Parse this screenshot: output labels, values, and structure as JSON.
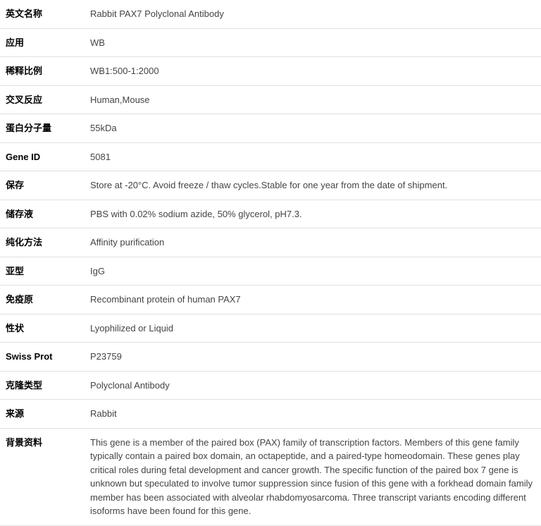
{
  "rows": [
    {
      "label": "英文名称",
      "value": "Rabbit PAX7 Polyclonal Antibody"
    },
    {
      "label": "应用",
      "value": "WB"
    },
    {
      "label": "稀释比例",
      "value": "WB1:500-1:2000"
    },
    {
      "label": "交叉反应",
      "value": "Human,Mouse"
    },
    {
      "label": "蛋白分子量",
      "value": "55kDa"
    },
    {
      "label": "Gene ID",
      "value": "5081"
    },
    {
      "label": "保存",
      "value": "Store at -20°C. Avoid freeze / thaw cycles.Stable for one year from the date of shipment."
    },
    {
      "label": "储存液",
      "value": "PBS with 0.02% sodium azide, 50% glycerol, pH7.3."
    },
    {
      "label": "纯化方法",
      "value": "Affinity purification"
    },
    {
      "label": "亚型",
      "value": "IgG"
    },
    {
      "label": "免疫原",
      "value": "Recombinant protein of human PAX7"
    },
    {
      "label": "性状",
      "value": "Lyophilized or Liquid"
    },
    {
      "label": "Swiss Prot",
      "value": "P23759"
    },
    {
      "label": "克隆类型",
      "value": "Polyclonal Antibody"
    },
    {
      "label": "来源",
      "value": "Rabbit"
    },
    {
      "label": "背景资料",
      "value": "This gene is a member of the paired box (PAX) family of transcription factors. Members of this gene family typically contain a paired box domain, an octapeptide, and a paired-type homeodomain. These genes play critical roles during fetal development and cancer growth. The specific function of the paired box 7 gene is unknown but speculated to involve tumor suppression since fusion of this gene with a forkhead domain family member has been associated with alveolar rhabdomyosarcoma. Three transcript variants encoding different isoforms have been found for this gene."
    }
  ]
}
